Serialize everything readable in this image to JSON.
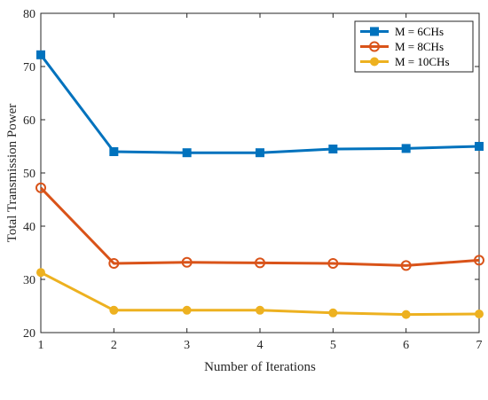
{
  "chart_data": {
    "type": "line",
    "xlabel": "Number of Iterations",
    "ylabel": "Total Transmission Power",
    "x": [
      1,
      2,
      3,
      4,
      5,
      6,
      7
    ],
    "xlim": [
      1,
      7
    ],
    "ylim": [
      20,
      80
    ],
    "xticks": [
      1,
      2,
      3,
      4,
      5,
      6,
      7
    ],
    "yticks": [
      20,
      30,
      40,
      50,
      60,
      70,
      80
    ],
    "grid": false,
    "legend": "top-right",
    "series": [
      {
        "name": "M = 6CHs",
        "values": [
          72.2,
          54.0,
          53.8,
          53.8,
          54.5,
          54.6,
          55.0
        ],
        "color": "#0072BD",
        "marker": "square"
      },
      {
        "name": "M = 8CHs",
        "values": [
          47.2,
          33.0,
          33.2,
          33.1,
          33.0,
          32.6,
          33.6
        ],
        "color": "#D95319",
        "marker": "circle-open"
      },
      {
        "name": "M = 10CHs",
        "values": [
          31.3,
          24.2,
          24.2,
          24.2,
          23.7,
          23.4,
          23.5
        ],
        "color": "#EDB120",
        "marker": "circle-filled"
      }
    ]
  }
}
